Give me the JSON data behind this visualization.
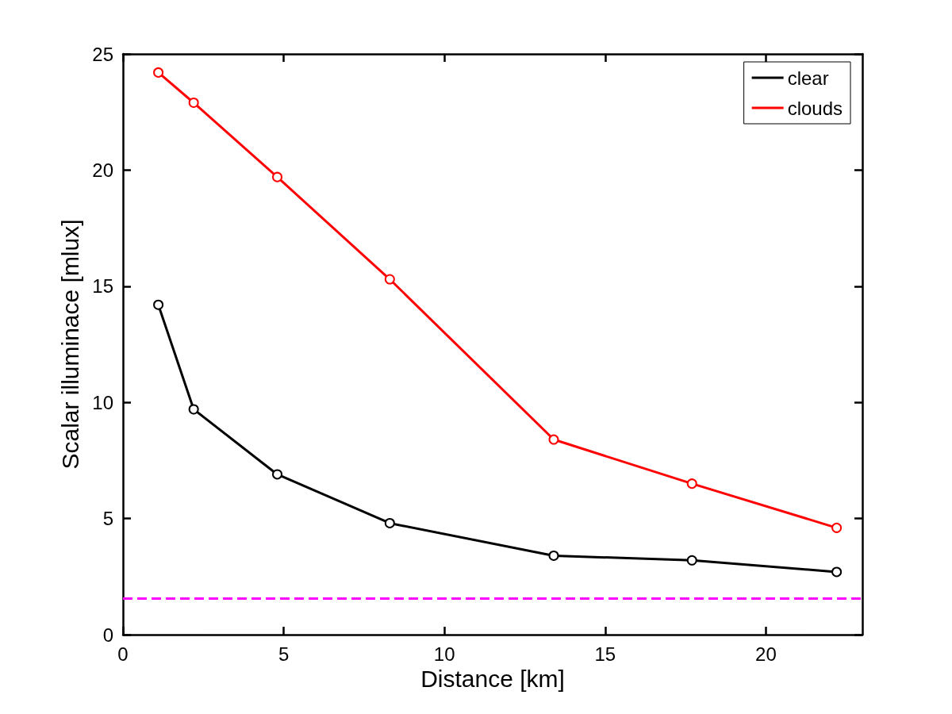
{
  "chart_data": {
    "type": "line",
    "xlabel": "Distance [km]",
    "ylabel": "Scalar illuminace [mlux]",
    "x": [
      1.1,
      2.2,
      4.8,
      8.3,
      13.4,
      17.7,
      22.2
    ],
    "series": [
      {
        "name": "clear",
        "color": "#000000",
        "values": [
          14.2,
          9.7,
          6.9,
          4.8,
          3.4,
          3.2,
          2.7
        ]
      },
      {
        "name": "clouds",
        "color": "#ff0000",
        "values": [
          24.2,
          22.9,
          19.7,
          15.3,
          8.4,
          6.5,
          4.6
        ]
      }
    ],
    "xlim": [
      0,
      23
    ],
    "xticks": [
      0,
      5,
      10,
      15,
      20
    ],
    "ylim": [
      0,
      25
    ],
    "yticks": [
      0,
      5,
      10,
      15,
      20,
      25
    ],
    "ref_lines": [
      {
        "axis": "y",
        "value": 1.55,
        "color": "#ff00ff",
        "line_style": "dashed"
      }
    ],
    "grid": false,
    "legend": "top right",
    "marker": "circle",
    "line_style": "solid"
  }
}
